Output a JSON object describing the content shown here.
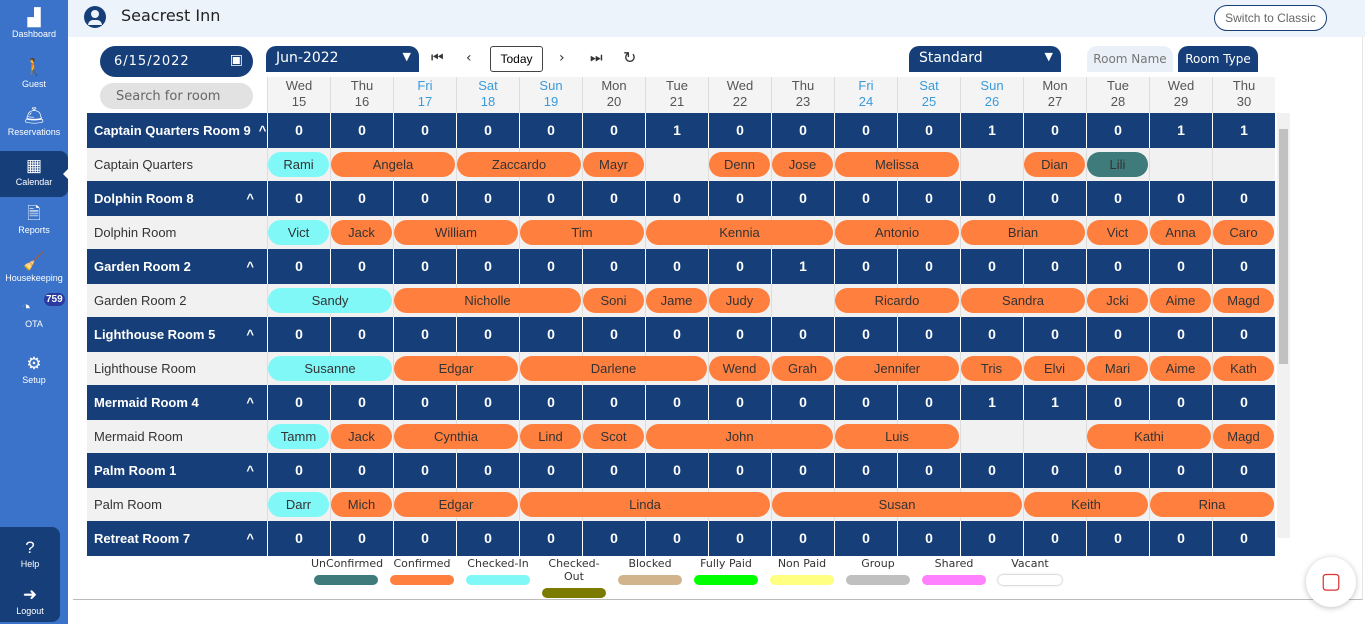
{
  "sidebar": {
    "items": [
      {
        "label": "Dashboard",
        "icon": "dashboard-icon",
        "glyph": "▟",
        "active": false
      },
      {
        "label": "Guest",
        "icon": "guest-icon",
        "glyph": "🚶",
        "active": false
      },
      {
        "label": "Reservations",
        "icon": "bell-icon",
        "glyph": "🛎",
        "active": false
      },
      {
        "label": "Calendar",
        "icon": "calendar-icon",
        "glyph": "▦",
        "active": true
      },
      {
        "label": "Reports",
        "icon": "reports-icon",
        "glyph": "🗎",
        "active": false
      },
      {
        "label": "Housekeeping",
        "icon": "housekeeping-icon",
        "glyph": "🧹",
        "active": false
      },
      {
        "label": "OTA",
        "icon": "ota-icon",
        "glyph": "◔",
        "active": false,
        "badge": "759"
      },
      {
        "label": "Setup",
        "icon": "gear-icon",
        "glyph": "⚙",
        "active": false
      }
    ],
    "bottom": [
      {
        "label": "Help",
        "icon": "help-icon",
        "glyph": "?"
      },
      {
        "label": "Logout",
        "icon": "logout-icon",
        "glyph": "➜"
      }
    ]
  },
  "header": {
    "title": "Seacrest Inn",
    "switch_label": "Switch to Classic"
  },
  "toolbar": {
    "date": "6/15/2022",
    "search_placeholder": "Search for room",
    "month": "Jun-2022",
    "today": "Today",
    "room_type": "Standard",
    "room_name_tab": "Room Name",
    "room_type_tab": "Room Type"
  },
  "days": [
    {
      "d": "Wed",
      "n": "15"
    },
    {
      "d": "Thu",
      "n": "16"
    },
    {
      "d": "Fri",
      "n": "17",
      "we": true
    },
    {
      "d": "Sat",
      "n": "18",
      "we": true
    },
    {
      "d": "Sun",
      "n": "19",
      "we": true
    },
    {
      "d": "Mon",
      "n": "20"
    },
    {
      "d": "Tue",
      "n": "21"
    },
    {
      "d": "Wed",
      "n": "22"
    },
    {
      "d": "Thu",
      "n": "23"
    },
    {
      "d": "Fri",
      "n": "24",
      "we": true
    },
    {
      "d": "Sat",
      "n": "25",
      "we": true
    },
    {
      "d": "Sun",
      "n": "26",
      "we": true
    },
    {
      "d": "Mon",
      "n": "27"
    },
    {
      "d": "Tue",
      "n": "28"
    },
    {
      "d": "Wed",
      "n": "29"
    },
    {
      "d": "Thu",
      "n": "30"
    }
  ],
  "status_colors": {
    "unconfirmed": "#3f7b7b",
    "confirmed": "#ff7f3f",
    "checkedin": "#80f8f8"
  },
  "rooms": [
    {
      "group": "Captain Quarters Room 9",
      "name": "Captain Quarters",
      "counts": [
        0,
        0,
        0,
        0,
        0,
        0,
        1,
        0,
        0,
        0,
        0,
        1,
        0,
        0,
        1,
        1
      ],
      "bookings": [
        {
          "g": "Rami",
          "s": 0,
          "n": 1,
          "st": "checkedin"
        },
        {
          "g": "Angela",
          "s": 1,
          "n": 2,
          "st": "confirmed"
        },
        {
          "g": "Zaccardo",
          "s": 3,
          "n": 2,
          "st": "confirmed"
        },
        {
          "g": "Mayr",
          "s": 5,
          "n": 1,
          "st": "confirmed"
        },
        {
          "g": "Denn",
          "s": 7,
          "n": 1,
          "st": "confirmed"
        },
        {
          "g": "Jose",
          "s": 8,
          "n": 1,
          "st": "confirmed"
        },
        {
          "g": "Melissa",
          "s": 9,
          "n": 2,
          "st": "confirmed"
        },
        {
          "g": "Dian",
          "s": 12,
          "n": 1,
          "st": "confirmed"
        },
        {
          "g": "Lili",
          "s": 13,
          "n": 1,
          "st": "unconfirmed"
        }
      ]
    },
    {
      "group": "Dolphin Room 8",
      "name": "Dolphin Room",
      "counts": [
        0,
        0,
        0,
        0,
        0,
        0,
        0,
        0,
        0,
        0,
        0,
        0,
        0,
        0,
        0,
        0
      ],
      "bookings": [
        {
          "g": "Vict",
          "s": 0,
          "n": 1,
          "st": "checkedin"
        },
        {
          "g": "Jack",
          "s": 1,
          "n": 1,
          "st": "confirmed"
        },
        {
          "g": "William",
          "s": 2,
          "n": 2,
          "st": "confirmed"
        },
        {
          "g": "Tim",
          "s": 4,
          "n": 2,
          "st": "confirmed"
        },
        {
          "g": "Kennia",
          "s": 6,
          "n": 3,
          "st": "confirmed"
        },
        {
          "g": "Antonio",
          "s": 9,
          "n": 2,
          "st": "confirmed"
        },
        {
          "g": "Brian",
          "s": 11,
          "n": 2,
          "st": "confirmed"
        },
        {
          "g": "Vict",
          "s": 13,
          "n": 1,
          "st": "confirmed"
        },
        {
          "g": "Anna",
          "s": 14,
          "n": 1,
          "st": "confirmed"
        },
        {
          "g": "Caro",
          "s": 15,
          "n": 1,
          "st": "confirmed"
        }
      ]
    },
    {
      "group": "Garden Room 2",
      "name": "Garden Room 2",
      "counts": [
        0,
        0,
        0,
        0,
        0,
        0,
        0,
        0,
        1,
        0,
        0,
        0,
        0,
        0,
        0,
        0
      ],
      "bookings": [
        {
          "g": "Sandy",
          "s": 0,
          "n": 2,
          "st": "checkedin"
        },
        {
          "g": "Nicholle",
          "s": 2,
          "n": 3,
          "st": "confirmed"
        },
        {
          "g": "Soni",
          "s": 5,
          "n": 1,
          "st": "confirmed"
        },
        {
          "g": "Jame",
          "s": 6,
          "n": 1,
          "st": "confirmed"
        },
        {
          "g": "Judy",
          "s": 7,
          "n": 1,
          "st": "confirmed"
        },
        {
          "g": "Ricardo",
          "s": 9,
          "n": 2,
          "st": "confirmed"
        },
        {
          "g": "Sandra",
          "s": 11,
          "n": 2,
          "st": "confirmed"
        },
        {
          "g": "Jcki",
          "s": 13,
          "n": 1,
          "st": "confirmed"
        },
        {
          "g": "Aime",
          "s": 14,
          "n": 1,
          "st": "confirmed"
        },
        {
          "g": "Magd",
          "s": 15,
          "n": 1,
          "st": "confirmed"
        }
      ]
    },
    {
      "group": "Lighthouse Room 5",
      "name": "Lighthouse Room",
      "counts": [
        0,
        0,
        0,
        0,
        0,
        0,
        0,
        0,
        0,
        0,
        0,
        0,
        0,
        0,
        0,
        0
      ],
      "bookings": [
        {
          "g": "Susanne",
          "s": 0,
          "n": 2,
          "st": "checkedin"
        },
        {
          "g": "Edgar",
          "s": 2,
          "n": 2,
          "st": "confirmed"
        },
        {
          "g": "Darlene",
          "s": 4,
          "n": 3,
          "st": "confirmed"
        },
        {
          "g": "Wend",
          "s": 7,
          "n": 1,
          "st": "confirmed"
        },
        {
          "g": "Grah",
          "s": 8,
          "n": 1,
          "st": "confirmed"
        },
        {
          "g": "Jennifer",
          "s": 9,
          "n": 2,
          "st": "confirmed"
        },
        {
          "g": "Tris",
          "s": 11,
          "n": 1,
          "st": "confirmed"
        },
        {
          "g": "Elvi",
          "s": 12,
          "n": 1,
          "st": "confirmed"
        },
        {
          "g": "Mari",
          "s": 13,
          "n": 1,
          "st": "confirmed"
        },
        {
          "g": "Aime",
          "s": 14,
          "n": 1,
          "st": "confirmed"
        },
        {
          "g": "Kath",
          "s": 15,
          "n": 1,
          "st": "confirmed"
        }
      ]
    },
    {
      "group": "Mermaid Room 4",
      "name": "Mermaid Room",
      "counts": [
        0,
        0,
        0,
        0,
        0,
        0,
        0,
        0,
        0,
        0,
        0,
        1,
        1,
        0,
        0,
        0
      ],
      "bookings": [
        {
          "g": "Tamm",
          "s": 0,
          "n": 1,
          "st": "checkedin"
        },
        {
          "g": "Jack",
          "s": 1,
          "n": 1,
          "st": "confirmed"
        },
        {
          "g": "Cynthia",
          "s": 2,
          "n": 2,
          "st": "confirmed"
        },
        {
          "g": "Lind",
          "s": 4,
          "n": 1,
          "st": "confirmed"
        },
        {
          "g": "Scot",
          "s": 5,
          "n": 1,
          "st": "confirmed"
        },
        {
          "g": "John",
          "s": 6,
          "n": 3,
          "st": "confirmed"
        },
        {
          "g": "Luis",
          "s": 9,
          "n": 2,
          "st": "confirmed"
        },
        {
          "g": "Kathi",
          "s": 13,
          "n": 2,
          "st": "confirmed"
        },
        {
          "g": "Magd",
          "s": 15,
          "n": 1,
          "st": "confirmed"
        }
      ]
    },
    {
      "group": "Palm Room 1",
      "name": "Palm Room",
      "counts": [
        0,
        0,
        0,
        0,
        0,
        0,
        0,
        0,
        0,
        0,
        0,
        0,
        0,
        0,
        0,
        0
      ],
      "bookings": [
        {
          "g": "Darr",
          "s": 0,
          "n": 1,
          "st": "checkedin"
        },
        {
          "g": "Mich",
          "s": 1,
          "n": 1,
          "st": "confirmed"
        },
        {
          "g": "Edgar",
          "s": 2,
          "n": 2,
          "st": "confirmed"
        },
        {
          "g": "Linda",
          "s": 4,
          "n": 4,
          "st": "confirmed"
        },
        {
          "g": "Susan",
          "s": 8,
          "n": 4,
          "st": "confirmed"
        },
        {
          "g": "Keith",
          "s": 12,
          "n": 2,
          "st": "confirmed"
        },
        {
          "g": "Rina",
          "s": 14,
          "n": 2,
          "st": "confirmed"
        }
      ]
    },
    {
      "group": "Retreat Room 7",
      "name": "",
      "counts": [
        0,
        0,
        0,
        0,
        0,
        0,
        0,
        0,
        0,
        0,
        0,
        0,
        0,
        0,
        0,
        0
      ],
      "bookings": []
    }
  ],
  "legend": [
    {
      "label": "UnConfirmed",
      "color": "#3f7b7b"
    },
    {
      "label": "Confirmed",
      "color": "#ff7f3f"
    },
    {
      "label": "Checked-In",
      "color": "#80f8f8"
    },
    {
      "label": "Checked-Out",
      "color": "#7b7b00"
    },
    {
      "label": "Blocked",
      "color": "#d2b48c"
    },
    {
      "label": "Fully Paid",
      "color": "#00ff00"
    },
    {
      "label": "Non Paid",
      "color": "#ffff80"
    },
    {
      "label": "Group",
      "color": "#c0c0c0"
    },
    {
      "label": "Shared",
      "color": "#ff80ff"
    },
    {
      "label": "Vacant",
      "color": "#ffffff"
    }
  ]
}
